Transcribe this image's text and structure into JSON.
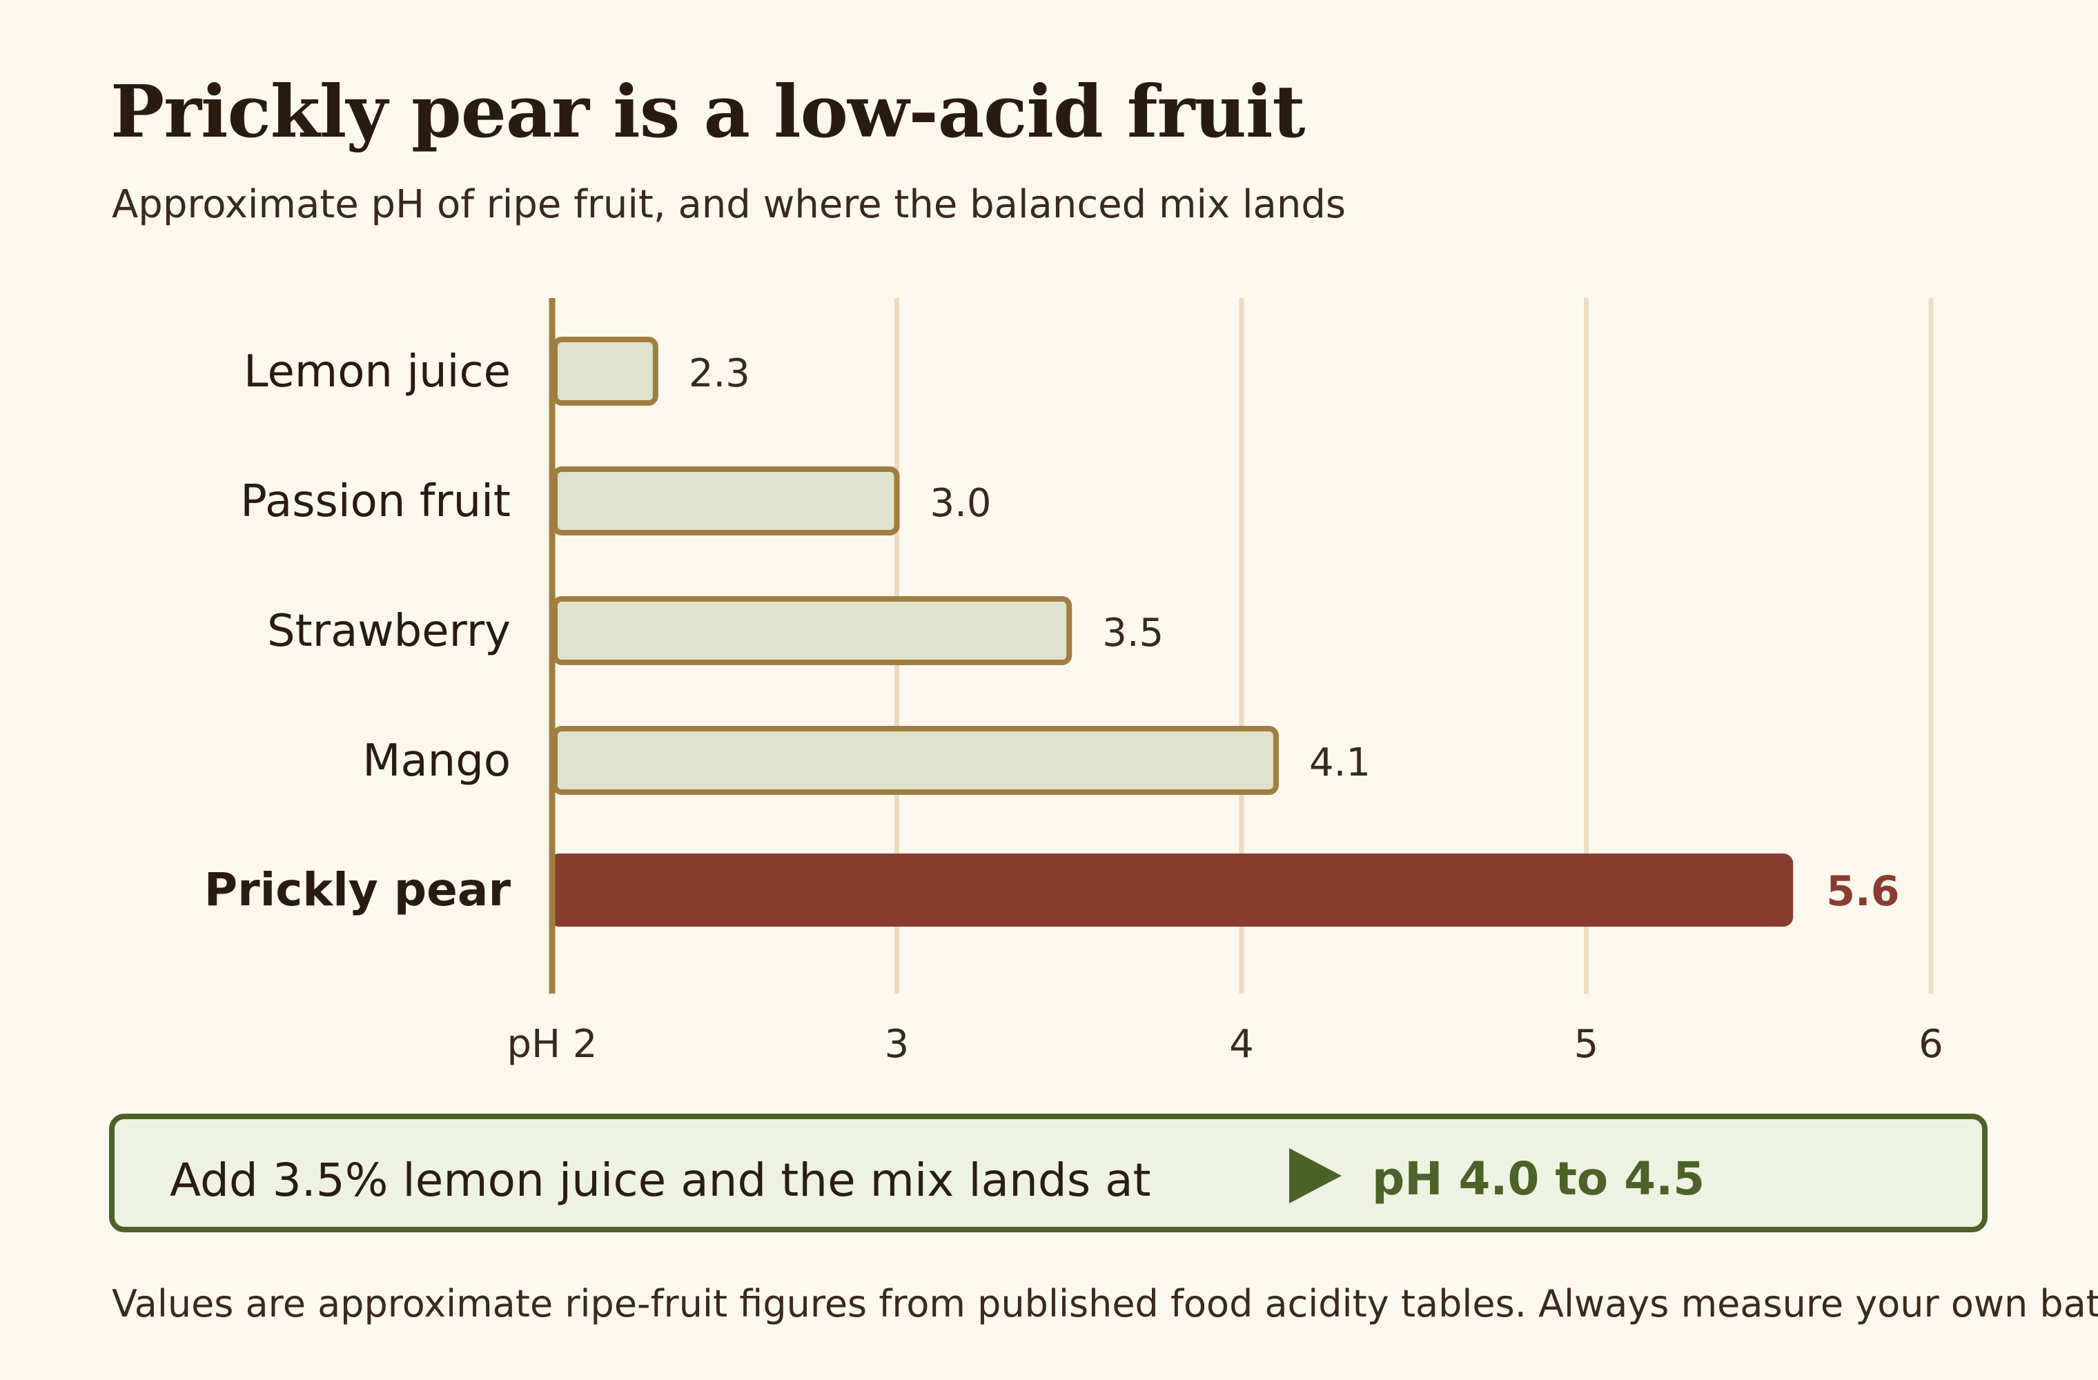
{
  "title": "Prickly pear is a low-acid fruit",
  "subtitle": "Approximate pH of ripe fruit, and where the balanced mix lands",
  "chart_data": {
    "type": "bar",
    "orientation": "horizontal",
    "categories": [
      "Lemon juice",
      "Passion fruit",
      "Strawberry",
      "Mango",
      "Prickly pear"
    ],
    "values": [
      2.3,
      3.0,
      3.5,
      4.1,
      5.6
    ],
    "value_labels": [
      "2.3",
      "3.0",
      "3.5",
      "4.1",
      "5.6"
    ],
    "highlight": "Prickly pear",
    "xlim": [
      2,
      6
    ],
    "xticks": [
      2,
      3,
      4,
      5,
      6
    ],
    "xtick_labels": [
      "pH 2",
      "3",
      "4",
      "5",
      "6"
    ],
    "grid": true,
    "colors": {
      "bar_fill": "#dfe3cd",
      "bar_outline": "#a07e42",
      "highlight_fill": "#8a3b2f",
      "highlight_label": "#8a3b2f",
      "grid": "#ecdcc2",
      "axis": "#a07e42"
    }
  },
  "callout": {
    "text": "Add 3.5% lemon juice and the mix lands at",
    "icon": "play-arrow-icon",
    "value": "pH 4.0 to 4.5",
    "accent": "#4d6228"
  },
  "footnote": "Values are approximate ripe-fruit figures from published food acidity tables. Always measure your own batch."
}
